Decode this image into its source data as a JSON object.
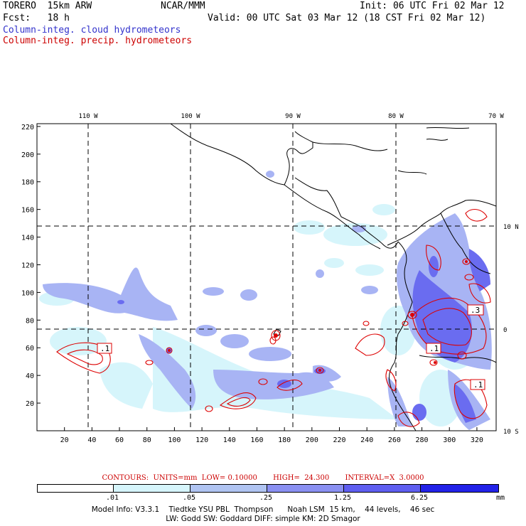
{
  "header": {
    "left_line1": "TORERO  15km ARW",
    "center_line1": "NCAR/MMM",
    "right_line1": "Init: 06 UTC Fri 02 Mar 12",
    "left_line2": "Fcst:   18 h",
    "right_line2": "Valid: 00 UTC Sat 03 Mar 12 (18 CST Fri 02 Mar 12)",
    "field_cloud": "Column-integ. cloud hydrometeors",
    "field_precip": "Column-integ. precip. hydrometeors"
  },
  "map": {
    "lon_labels": [
      "110 W",
      "100 W",
      "90 W",
      "80 W",
      "70 W"
    ],
    "lat_labels": [
      "10 N",
      "0",
      "10 S"
    ],
    "x_ticks": [
      "20",
      "40",
      "60",
      "80",
      "100",
      "120",
      "140",
      "160",
      "180",
      "200",
      "220",
      "240",
      "260",
      "280",
      "300",
      "320"
    ],
    "y_ticks": [
      "20",
      "40",
      "60",
      "80",
      "100",
      "120",
      "140",
      "160",
      "180",
      "200",
      "220"
    ],
    "contour_labels": [
      ".1",
      ".3",
      ".1",
      ".1"
    ],
    "colors": {
      "cloud_light": "#d6f5fb",
      "cloud_mid": "#a8b4f4",
      "cloud_dark": "#6a6cf0",
      "precip_contour": "#dd0000"
    }
  },
  "contours_info": "CONTOURS:  UNITS=mm  LOW= 0.10000       HIGH=  24.300       INTERVAL=X  3.0000",
  "colorbar": {
    "labels": [
      ".01",
      ".05",
      ".25",
      "1.25",
      "6.25"
    ],
    "units": "mm",
    "colors": [
      "#ffffff",
      "#d6f5fb",
      "#b0c4f2",
      "#8a90f2",
      "#5e5ef0",
      "#2222e8"
    ]
  },
  "model_info": {
    "line1": "Model Info: V3.3.1    Tiedtke YSU PBL  Thompson      Noah LSM  15 km,    44 levels,    46 sec",
    "line2": "LW: Godd SW: Goddard DIFF: simple KM: 2D Smagor"
  }
}
